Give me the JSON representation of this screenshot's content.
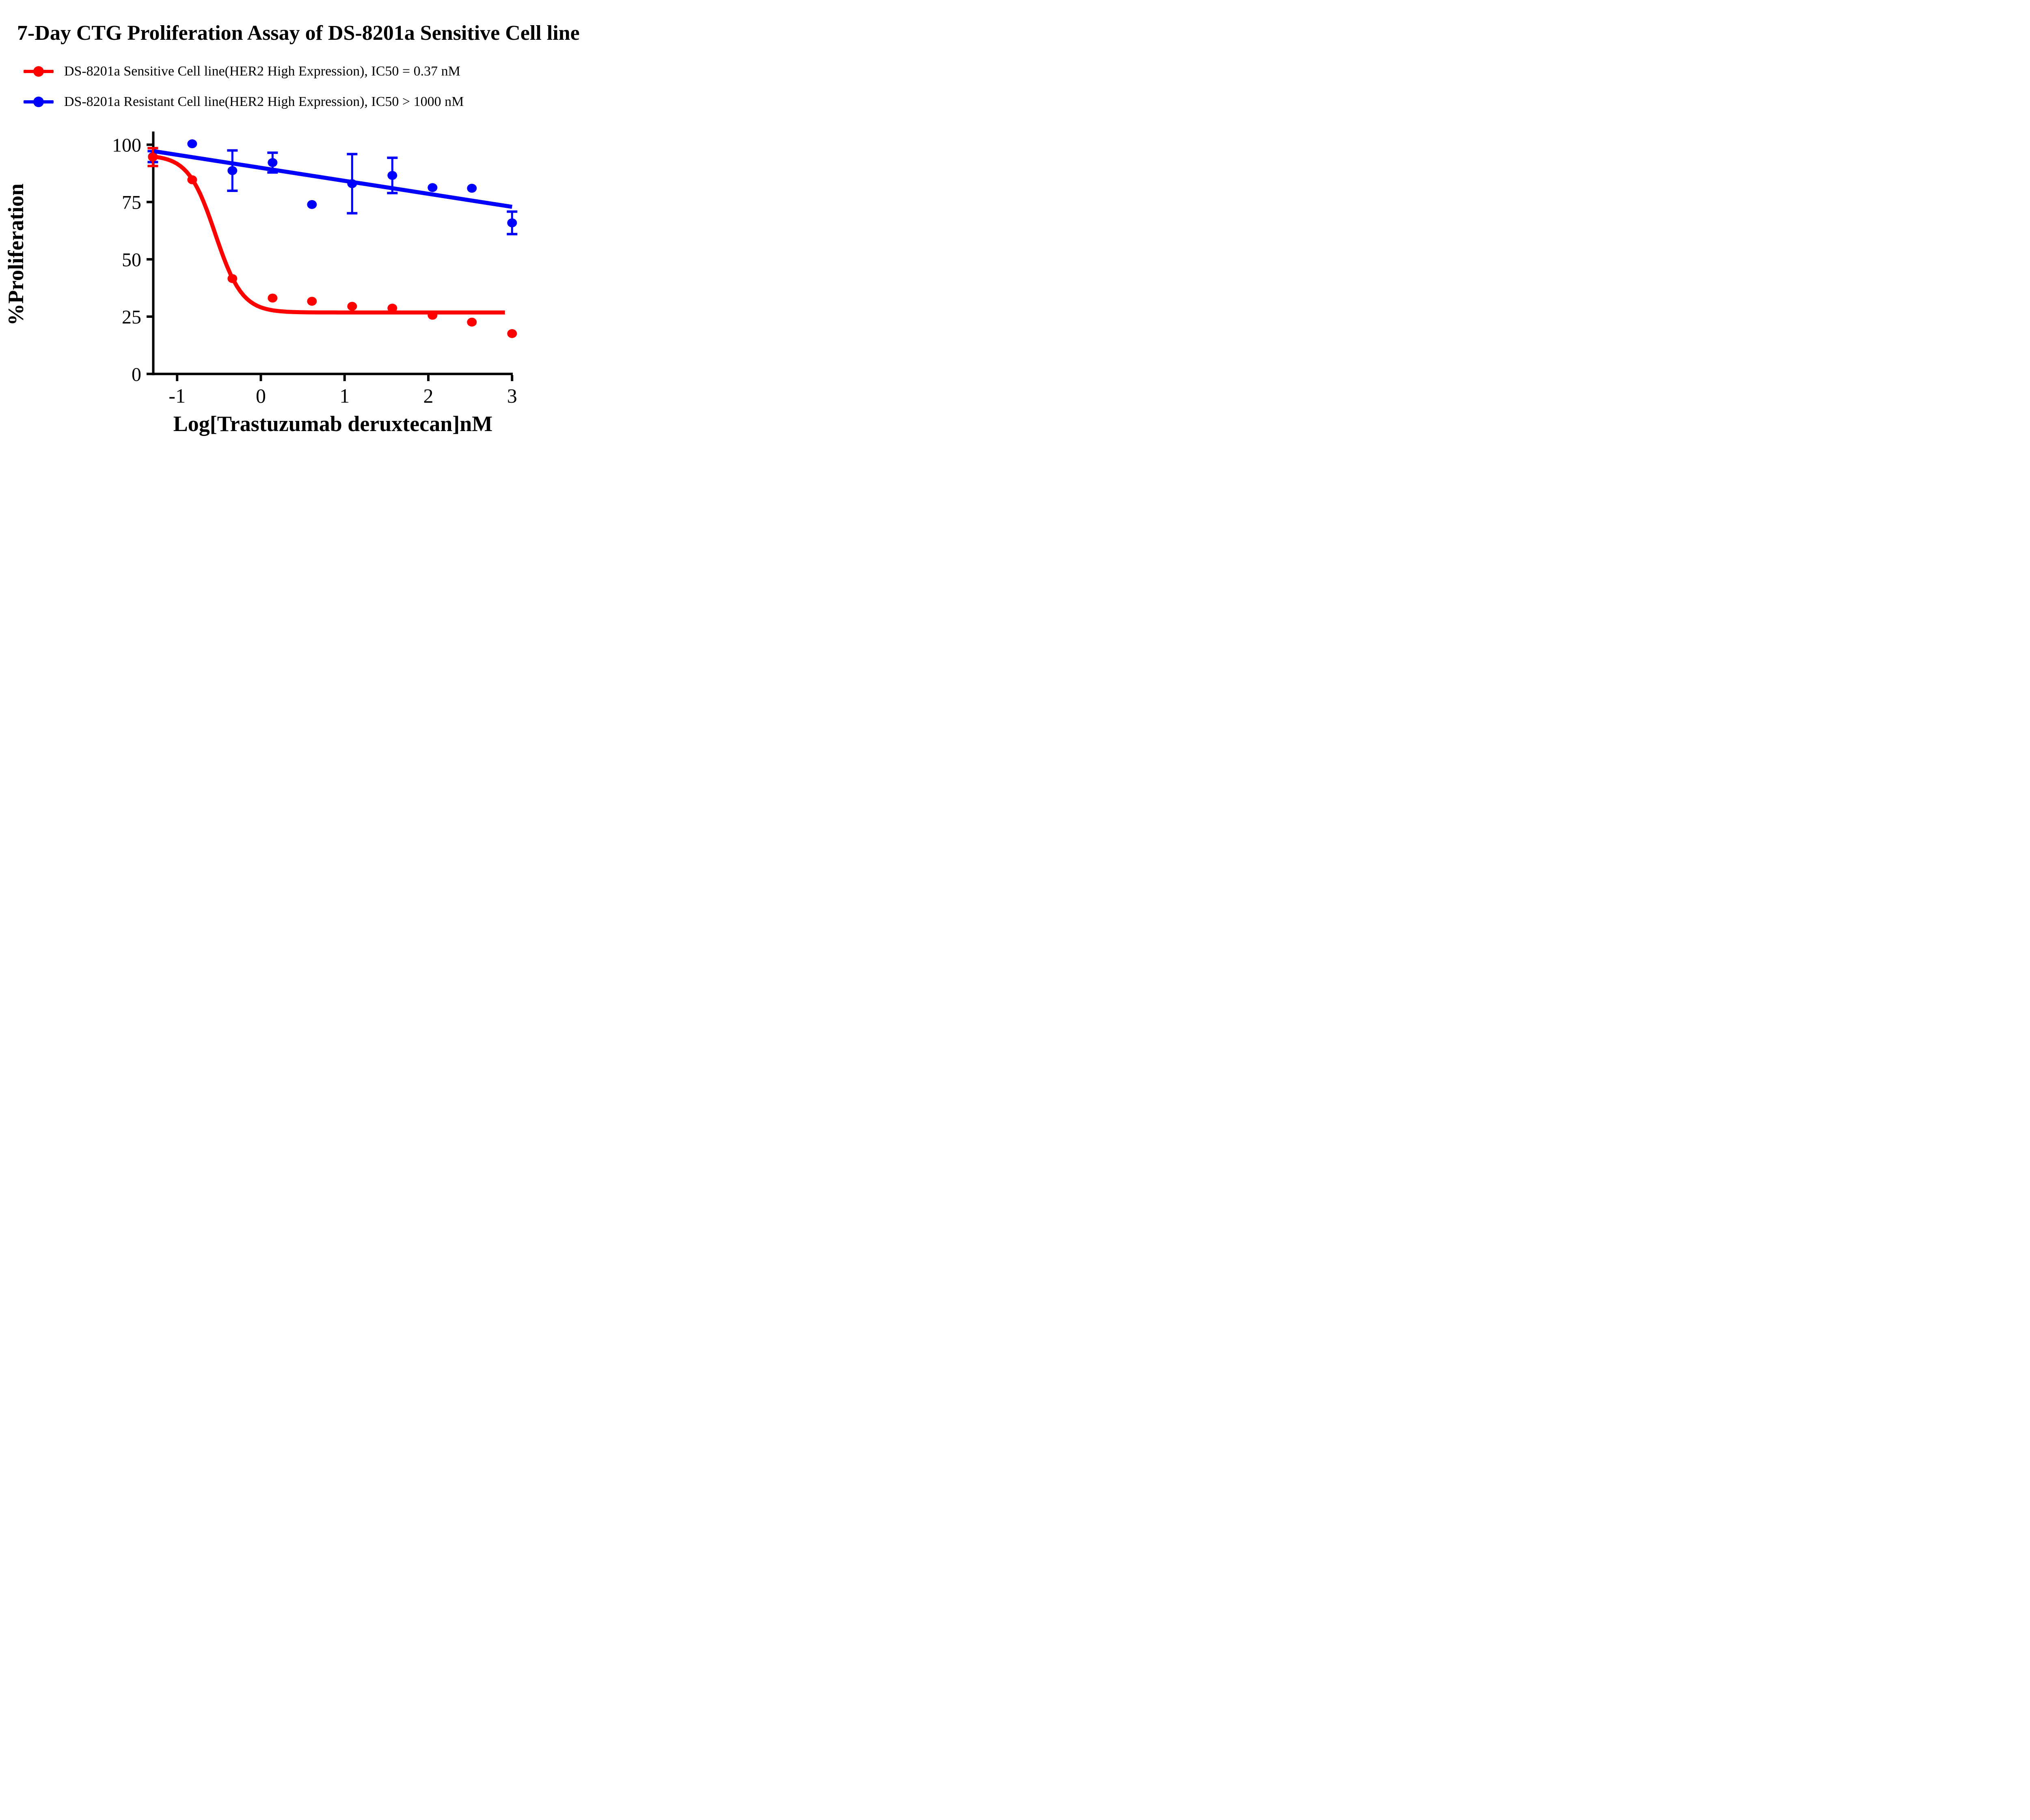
{
  "title": "7-Day CTG Proliferation Assay of DS-8201a Sensitive Cell line",
  "legend": {
    "position": "top-left",
    "items": [
      {
        "label": "DS-8201a Sensitive Cell line(HER2 High Expression), IC50 = 0.37 nM",
        "color": "#ff0000",
        "marker": "circle-on-line"
      },
      {
        "label": "DS-8201a Resistant Cell line(HER2 High Expression), IC50 > 1000 nM",
        "color": "#0000ff",
        "marker": "circle-on-line"
      }
    ]
  },
  "chart_data": {
    "type": "scatter",
    "title": "7-Day CTG Proliferation Assay of DS-8201a Sensitive Cell line",
    "xlabel": "Log[Trastuzumab deruxtecan]nM",
    "ylabel": "%Proliferation",
    "xlim": [
      -1.285,
      3.35
    ],
    "ylim": [
      0,
      106
    ],
    "x_ticks": [
      -1,
      0,
      1,
      2,
      3
    ],
    "y_ticks": [
      0,
      25,
      50,
      75,
      100
    ],
    "grid": false,
    "axis_color": "#000000",
    "x": [
      -1.29,
      -0.82,
      -0.34,
      0.14,
      0.61,
      1.09,
      1.57,
      2.05,
      2.52,
      3.0
    ],
    "series": [
      {
        "name": "DS-8201a Sensitive Cell line(HER2 High Expression)",
        "ic50": "IC50 = 0.37 nM",
        "color": "#ff0000",
        "y": [
          94.6,
          84.7,
          41.6,
          33.1,
          31.7,
          29.5,
          28.7,
          25.6,
          22.6,
          17.6
        ],
        "err": [
          3.9,
          null,
          null,
          null,
          null,
          null,
          null,
          null,
          null,
          null
        ],
        "fit": {
          "kind": "logistic4",
          "top": 95.5,
          "bottom": 26.8,
          "hill": 2.7,
          "log_ic50": -0.545,
          "x_start": -1.285,
          "x_end": 2.95
        }
      },
      {
        "name": "DS-8201a Resistant Cell line(HER2 High Expression)",
        "ic50": "IC50 > 1000 nM",
        "color": "#0000ff",
        "y": [
          94.8,
          100.4,
          88.7,
          92.2,
          73.9,
          83.0,
          86.6,
          81.3,
          81.0,
          65.9
        ],
        "err": [
          2.4,
          null,
          8.8,
          4.3,
          null,
          12.9,
          7.7,
          null,
          null,
          4.9
        ],
        "fit": {
          "kind": "linear",
          "x1": -1.285,
          "y1": 97.2,
          "x2": 3.0,
          "y2": 72.9
        }
      }
    ]
  }
}
